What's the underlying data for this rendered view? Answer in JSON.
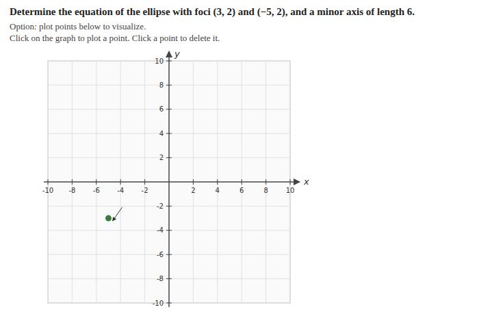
{
  "chart_data": {
    "type": "scatter",
    "title": "Determine the equation of the ellipse with foci (3, 2) and (−5, 2), and a minor axis of length 6.",
    "subtitle": "Option: plot points below to visualize.",
    "annotations": [
      "Click on the graph to plot a point. Click a point to delete it."
    ],
    "x_label": "x",
    "y_label": "y",
    "x": [
      -5
    ],
    "values": [
      -3
    ],
    "color": "#3a7a3a",
    "marker": "circle",
    "xlim": [
      -10,
      10
    ],
    "ylim": [
      -10,
      10
    ],
    "xticks": [
      -10,
      -8,
      -6,
      -4,
      -2,
      2,
      4,
      6,
      8,
      10
    ],
    "yticks": [
      -10,
      -8,
      -6,
      -4,
      -2,
      2,
      4,
      6,
      8,
      10
    ],
    "grid": true
  }
}
